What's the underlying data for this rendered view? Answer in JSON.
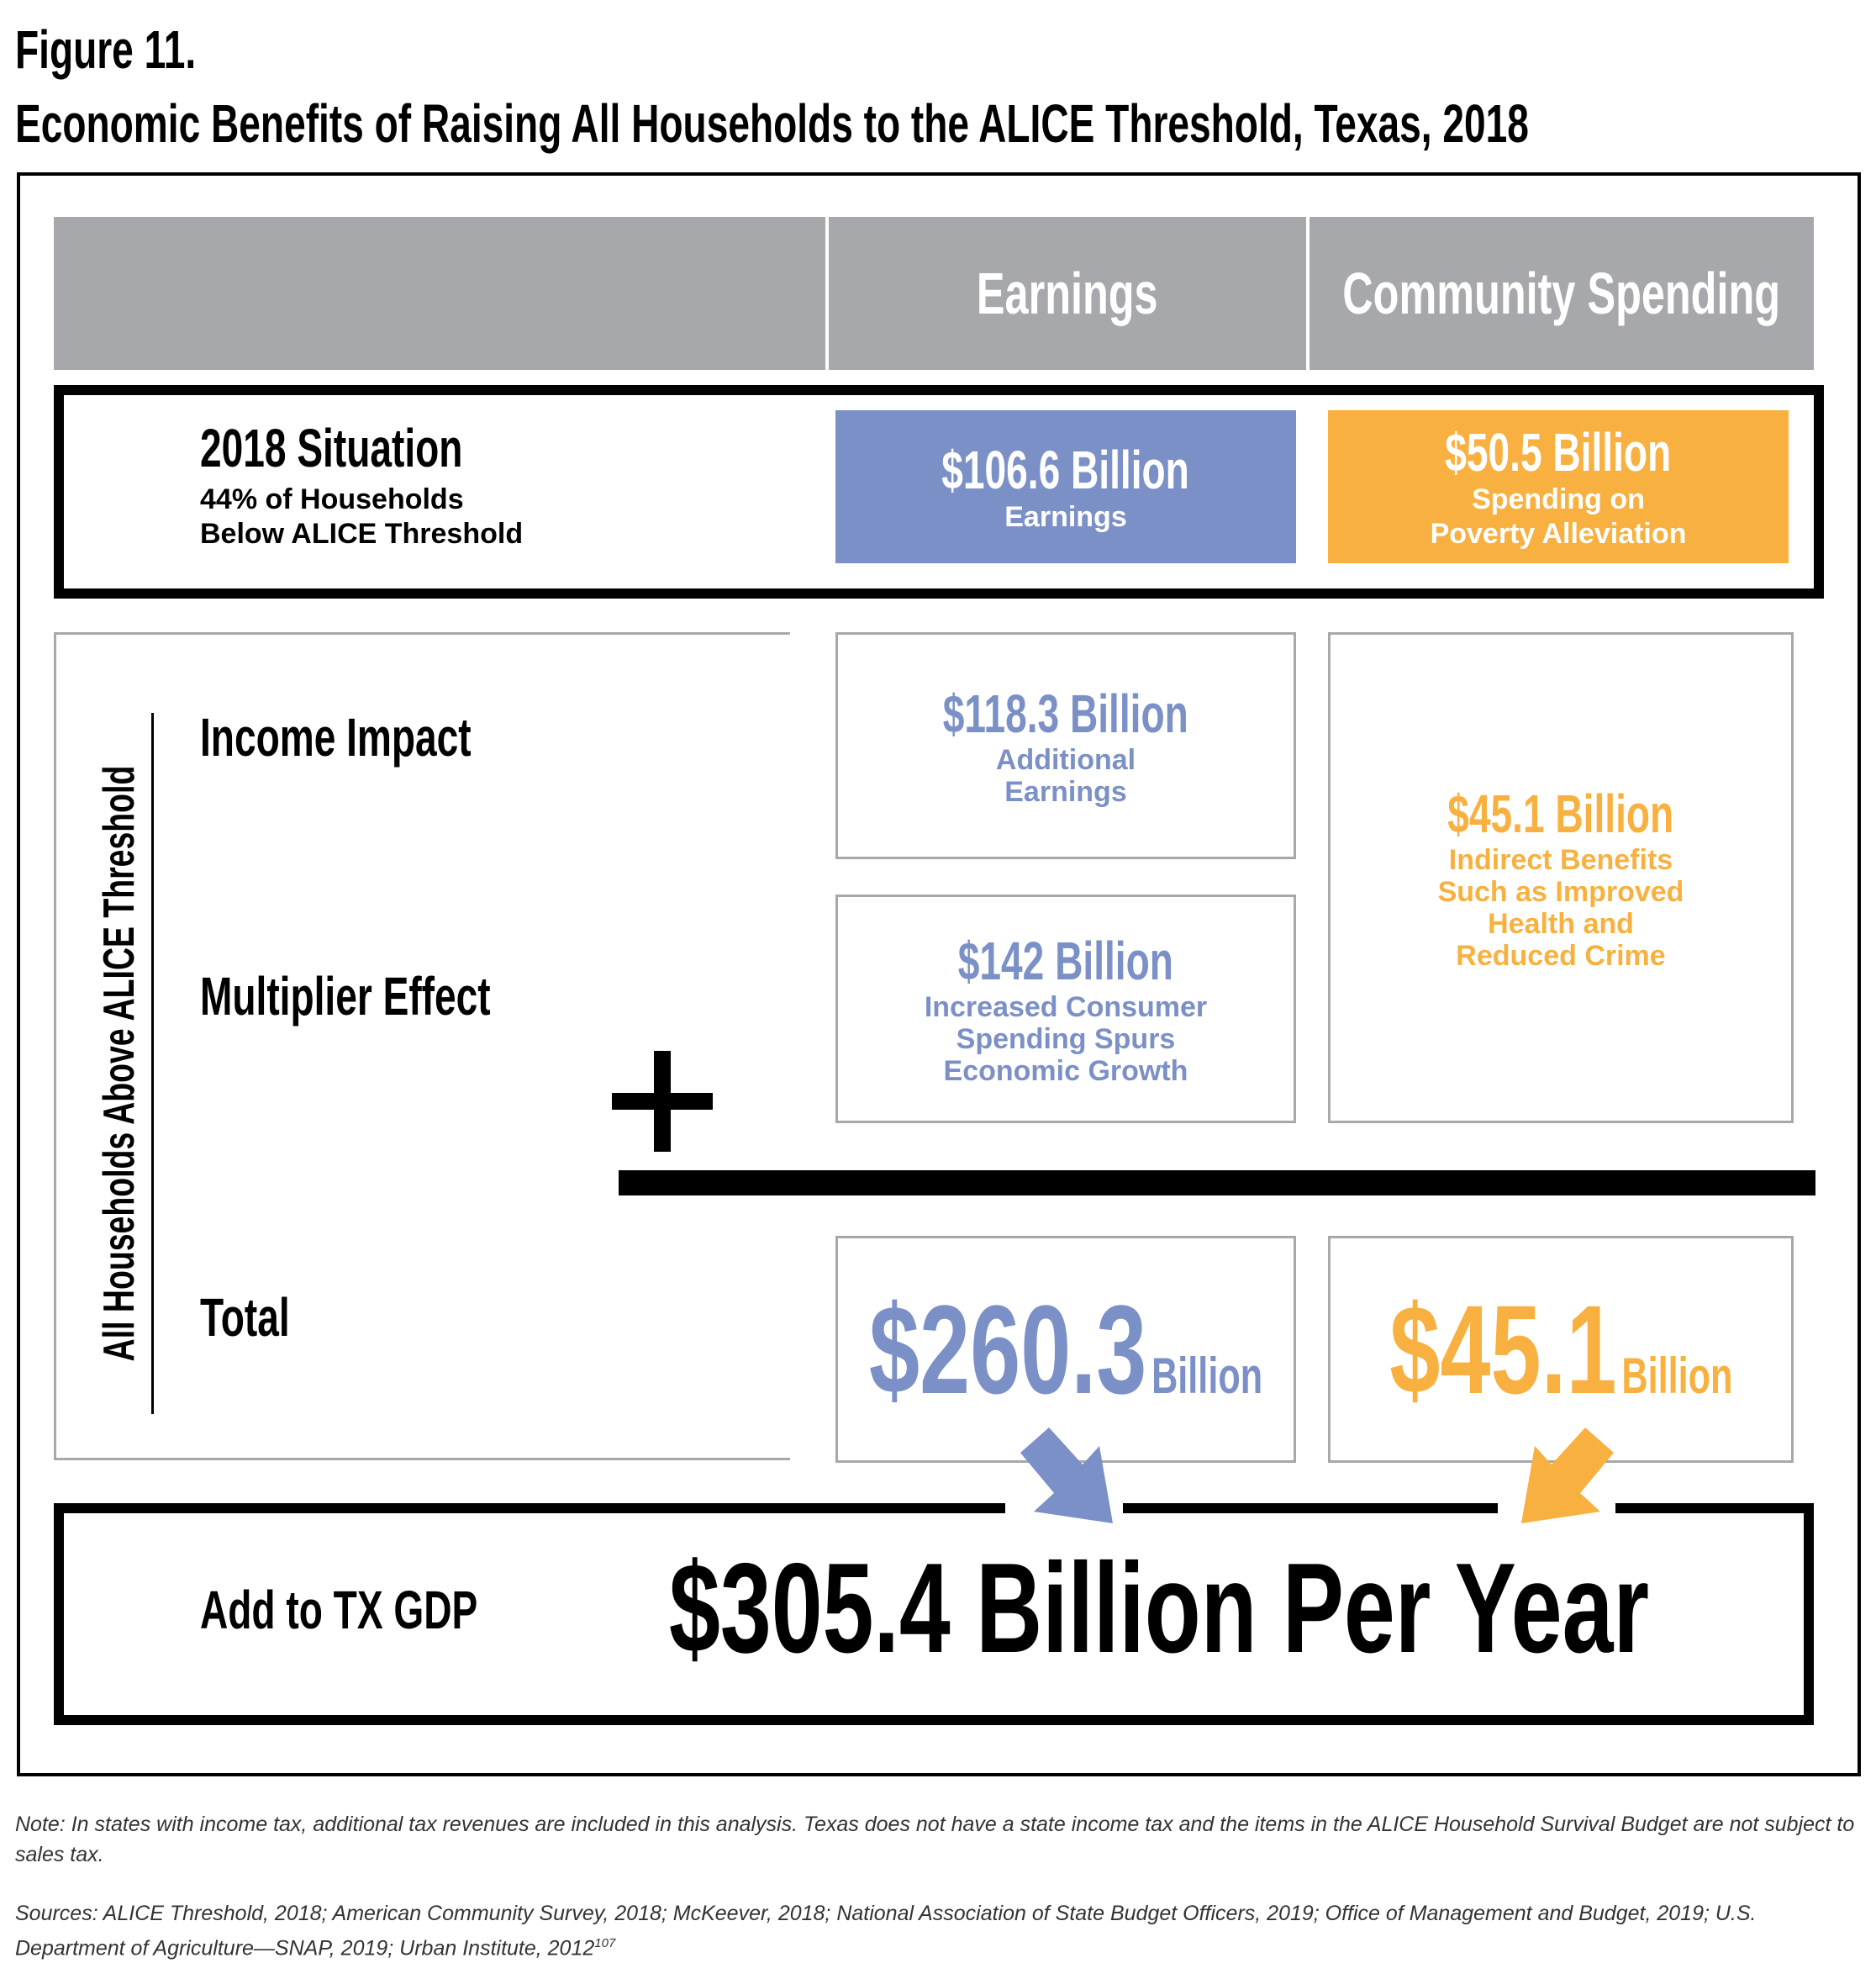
{
  "figure_label": "Figure 11.",
  "title": "Economic Benefits of Raising All Households to the ALICE Threshold, Texas, 2018",
  "header": {
    "earnings": "Earnings",
    "community": "Community Spending"
  },
  "situation": {
    "title": "2018 Situation",
    "sub_line1": "44% of Households",
    "sub_line2": "Below ALICE Threshold",
    "earnings_value": "$106.6 Billion",
    "earnings_sub": "Earnings",
    "community_value": "$50.5 Billion",
    "community_sub1": "Spending on",
    "community_sub2": "Poverty Alleviation"
  },
  "side_label": "All Households Above ALICE Threshold",
  "rows": {
    "income_impact": "Income Impact",
    "multiplier": "Multiplier Effect",
    "total": "Total"
  },
  "income": {
    "value": "$118.3 Billion",
    "sub1": "Additional",
    "sub2": "Earnings"
  },
  "multiplier": {
    "value": "$142 Billion",
    "sub1": "Increased Consumer",
    "sub2": "Spending Spurs",
    "sub3": "Economic Growth"
  },
  "indirect": {
    "value": "$45.1 Billion",
    "sub1": "Indirect Benefits",
    "sub2": "Such as Improved",
    "sub3": "Health and",
    "sub4": "Reduced Crime"
  },
  "totals": {
    "earnings_big": "$260.3",
    "earnings_unit": "Billion",
    "community_big": "$45.1",
    "community_unit": "Billion"
  },
  "gdp": {
    "label": "Add to TX GDP",
    "value": "$305.4 Billion Per Year"
  },
  "note": "Note: In states with income tax, additional tax revenues are included in this analysis. Texas does not have a state income tax and the items in the ALICE Household Survival Budget are not subject to sales tax.",
  "sources": "Sources: ALICE Threshold, 2018; American Community Survey, 2018; McKeever, 2018; National Association of State Budget Officers, 2019; Office of Management and Budget, 2019; U.S. Department of Agriculture—SNAP, 2019; Urban Institute, 2012",
  "sources_sup": "107",
  "colors": {
    "earnings": "#7b90c7",
    "community": "#f8b140",
    "header": "#a7a8ab"
  }
}
